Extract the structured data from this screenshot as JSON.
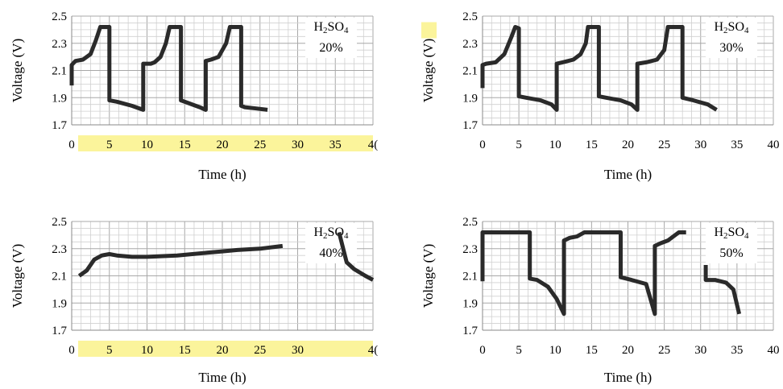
{
  "chart_data": [
    {
      "type": "line",
      "xlabel": "Time (h)",
      "ylabel": "Voltage (V)",
      "xlim": [
        0,
        40
      ],
      "ylim": [
        1.7,
        2.5
      ],
      "xticks": [
        "0",
        "5",
        "10",
        "15",
        "20",
        "25",
        "30",
        "35",
        "4("
      ],
      "yticks": [
        "1.7",
        "1.9",
        "2.1",
        "2.3",
        "2.5"
      ],
      "grid": true,
      "legend_placement": "top-right",
      "legend_main": "H",
      "legend_sub1": "2",
      "legend_mid": "SO",
      "legend_sub2": "4",
      "legend_pct": "20%",
      "xtick_highlight": true,
      "ylabel_highlight_unit": false,
      "series": [
        {
          "x": [
            0,
            0,
            0.5,
            1.5,
            2.5,
            3.2,
            3.8,
            4,
            5,
            5,
            6,
            8,
            9.5,
            9.5,
            10.5,
            11,
            11.8,
            12.5,
            13,
            14.5,
            14.5,
            15.5,
            17,
            17.8,
            17.8,
            18.5,
            19.5,
            20.5,
            21,
            22.5,
            22.5,
            23,
            24.5,
            26
          ],
          "y": [
            1.99,
            2.14,
            2.17,
            2.18,
            2.22,
            2.32,
            2.42,
            2.42,
            2.42,
            1.88,
            1.87,
            1.84,
            1.81,
            2.15,
            2.15,
            2.16,
            2.2,
            2.3,
            2.42,
            2.42,
            1.88,
            1.86,
            1.83,
            1.81,
            2.17,
            2.18,
            2.2,
            2.3,
            2.42,
            2.42,
            1.84,
            1.83,
            1.82,
            1.81
          ]
        }
      ]
    },
    {
      "type": "line",
      "xlabel": "Time (h)",
      "ylabel": "Voltage (V)",
      "xlim": [
        0,
        40
      ],
      "ylim": [
        1.7,
        2.5
      ],
      "xticks": [
        "0",
        "5",
        "10",
        "15",
        "20",
        "25",
        "30",
        "35",
        "40"
      ],
      "yticks": [
        "1.7",
        "1.9",
        "2.1",
        "2.3",
        "2.5"
      ],
      "grid": true,
      "legend_placement": "top-right",
      "legend_main": "H",
      "legend_sub1": "2",
      "legend_mid": "SO",
      "legend_sub2": "4",
      "legend_pct": "30%",
      "xtick_highlight": false,
      "ylabel_highlight_unit": true,
      "series": [
        {
          "x": [
            0,
            0,
            0.5,
            1.8,
            3,
            4,
            4.5,
            5,
            5,
            6,
            8,
            9.5,
            10.2,
            10.2,
            11,
            12.5,
            13.5,
            14.2,
            14.5,
            16,
            16,
            17,
            19,
            20.5,
            21.3,
            21.3,
            22.5,
            24,
            25,
            25.5,
            27.5,
            27.5,
            29,
            31,
            32.2
          ],
          "y": [
            1.97,
            2.14,
            2.15,
            2.16,
            2.22,
            2.35,
            2.42,
            2.41,
            1.91,
            1.9,
            1.88,
            1.85,
            1.81,
            2.15,
            2.16,
            2.18,
            2.22,
            2.3,
            2.42,
            2.42,
            1.91,
            1.9,
            1.88,
            1.85,
            1.81,
            2.15,
            2.16,
            2.18,
            2.25,
            2.42,
            2.42,
            1.9,
            1.88,
            1.85,
            1.81
          ]
        }
      ]
    },
    {
      "type": "line",
      "xlabel": "Time (h)",
      "ylabel": "Voltage (V)",
      "xlim": [
        0,
        40
      ],
      "ylim": [
        1.7,
        2.5
      ],
      "xticks": [
        "0",
        "5",
        "10",
        "15",
        "20",
        "25",
        "30",
        "",
        "4("
      ],
      "yticks": [
        "1.7",
        "1.9",
        "2.1",
        "2.3",
        "2.5"
      ],
      "grid": true,
      "legend_placement": "top-right",
      "legend_main": "H",
      "legend_sub1": "2",
      "legend_mid": "SO",
      "legend_sub2": "4",
      "legend_pct": "40%",
      "xtick_highlight": true,
      "ylabel_highlight_unit": false,
      "series": [
        {
          "x": [
            1,
            2,
            3,
            4,
            5,
            6,
            8,
            10,
            14,
            18,
            20,
            22,
            25,
            28
          ],
          "y": [
            2.1,
            2.14,
            2.22,
            2.25,
            2.26,
            2.25,
            2.24,
            2.24,
            2.25,
            2.27,
            2.28,
            2.29,
            2.3,
            2.32
          ]
        },
        {
          "x": [
            35.5,
            36.5,
            37.5,
            39,
            40
          ],
          "y": [
            2.42,
            2.2,
            2.15,
            2.1,
            2.07
          ]
        }
      ]
    },
    {
      "type": "line",
      "xlabel": "Time (h)",
      "ylabel": "Voltage (V)",
      "xlim": [
        0,
        40
      ],
      "ylim": [
        1.7,
        2.5
      ],
      "xticks": [
        "0",
        "5",
        "10",
        "15",
        "20",
        "25",
        "30",
        "35",
        "40"
      ],
      "yticks": [
        "1.7",
        "1.9",
        "2.1",
        "2.3",
        "2.5"
      ],
      "grid": true,
      "legend_placement": "top-right",
      "legend_main": "H",
      "legend_sub1": "2",
      "legend_mid": "SO",
      "legend_sub2": "4",
      "legend_pct": "50%",
      "xtick_highlight": false,
      "ylabel_highlight_unit": false,
      "series": [
        {
          "x": [
            0,
            0,
            6.5,
            6.5,
            7.5,
            9,
            10.2,
            11.2,
            11.2,
            12,
            13,
            14,
            19,
            19,
            20.5,
            22.5,
            23.7,
            23.7,
            24.5,
            25.5,
            27,
            28
          ],
          "y": [
            2.06,
            2.42,
            2.42,
            2.08,
            2.07,
            2.02,
            1.93,
            1.82,
            2.36,
            2.38,
            2.39,
            2.42,
            2.42,
            2.09,
            2.07,
            2.04,
            1.82,
            2.32,
            2.34,
            2.36,
            2.42,
            2.42
          ]
        },
        {
          "x": [
            30.7,
            30.7,
            32,
            33.5,
            34.5,
            35.3
          ],
          "y": [
            2.18,
            2.07,
            2.07,
            2.05,
            2.0,
            1.82
          ]
        }
      ]
    }
  ]
}
